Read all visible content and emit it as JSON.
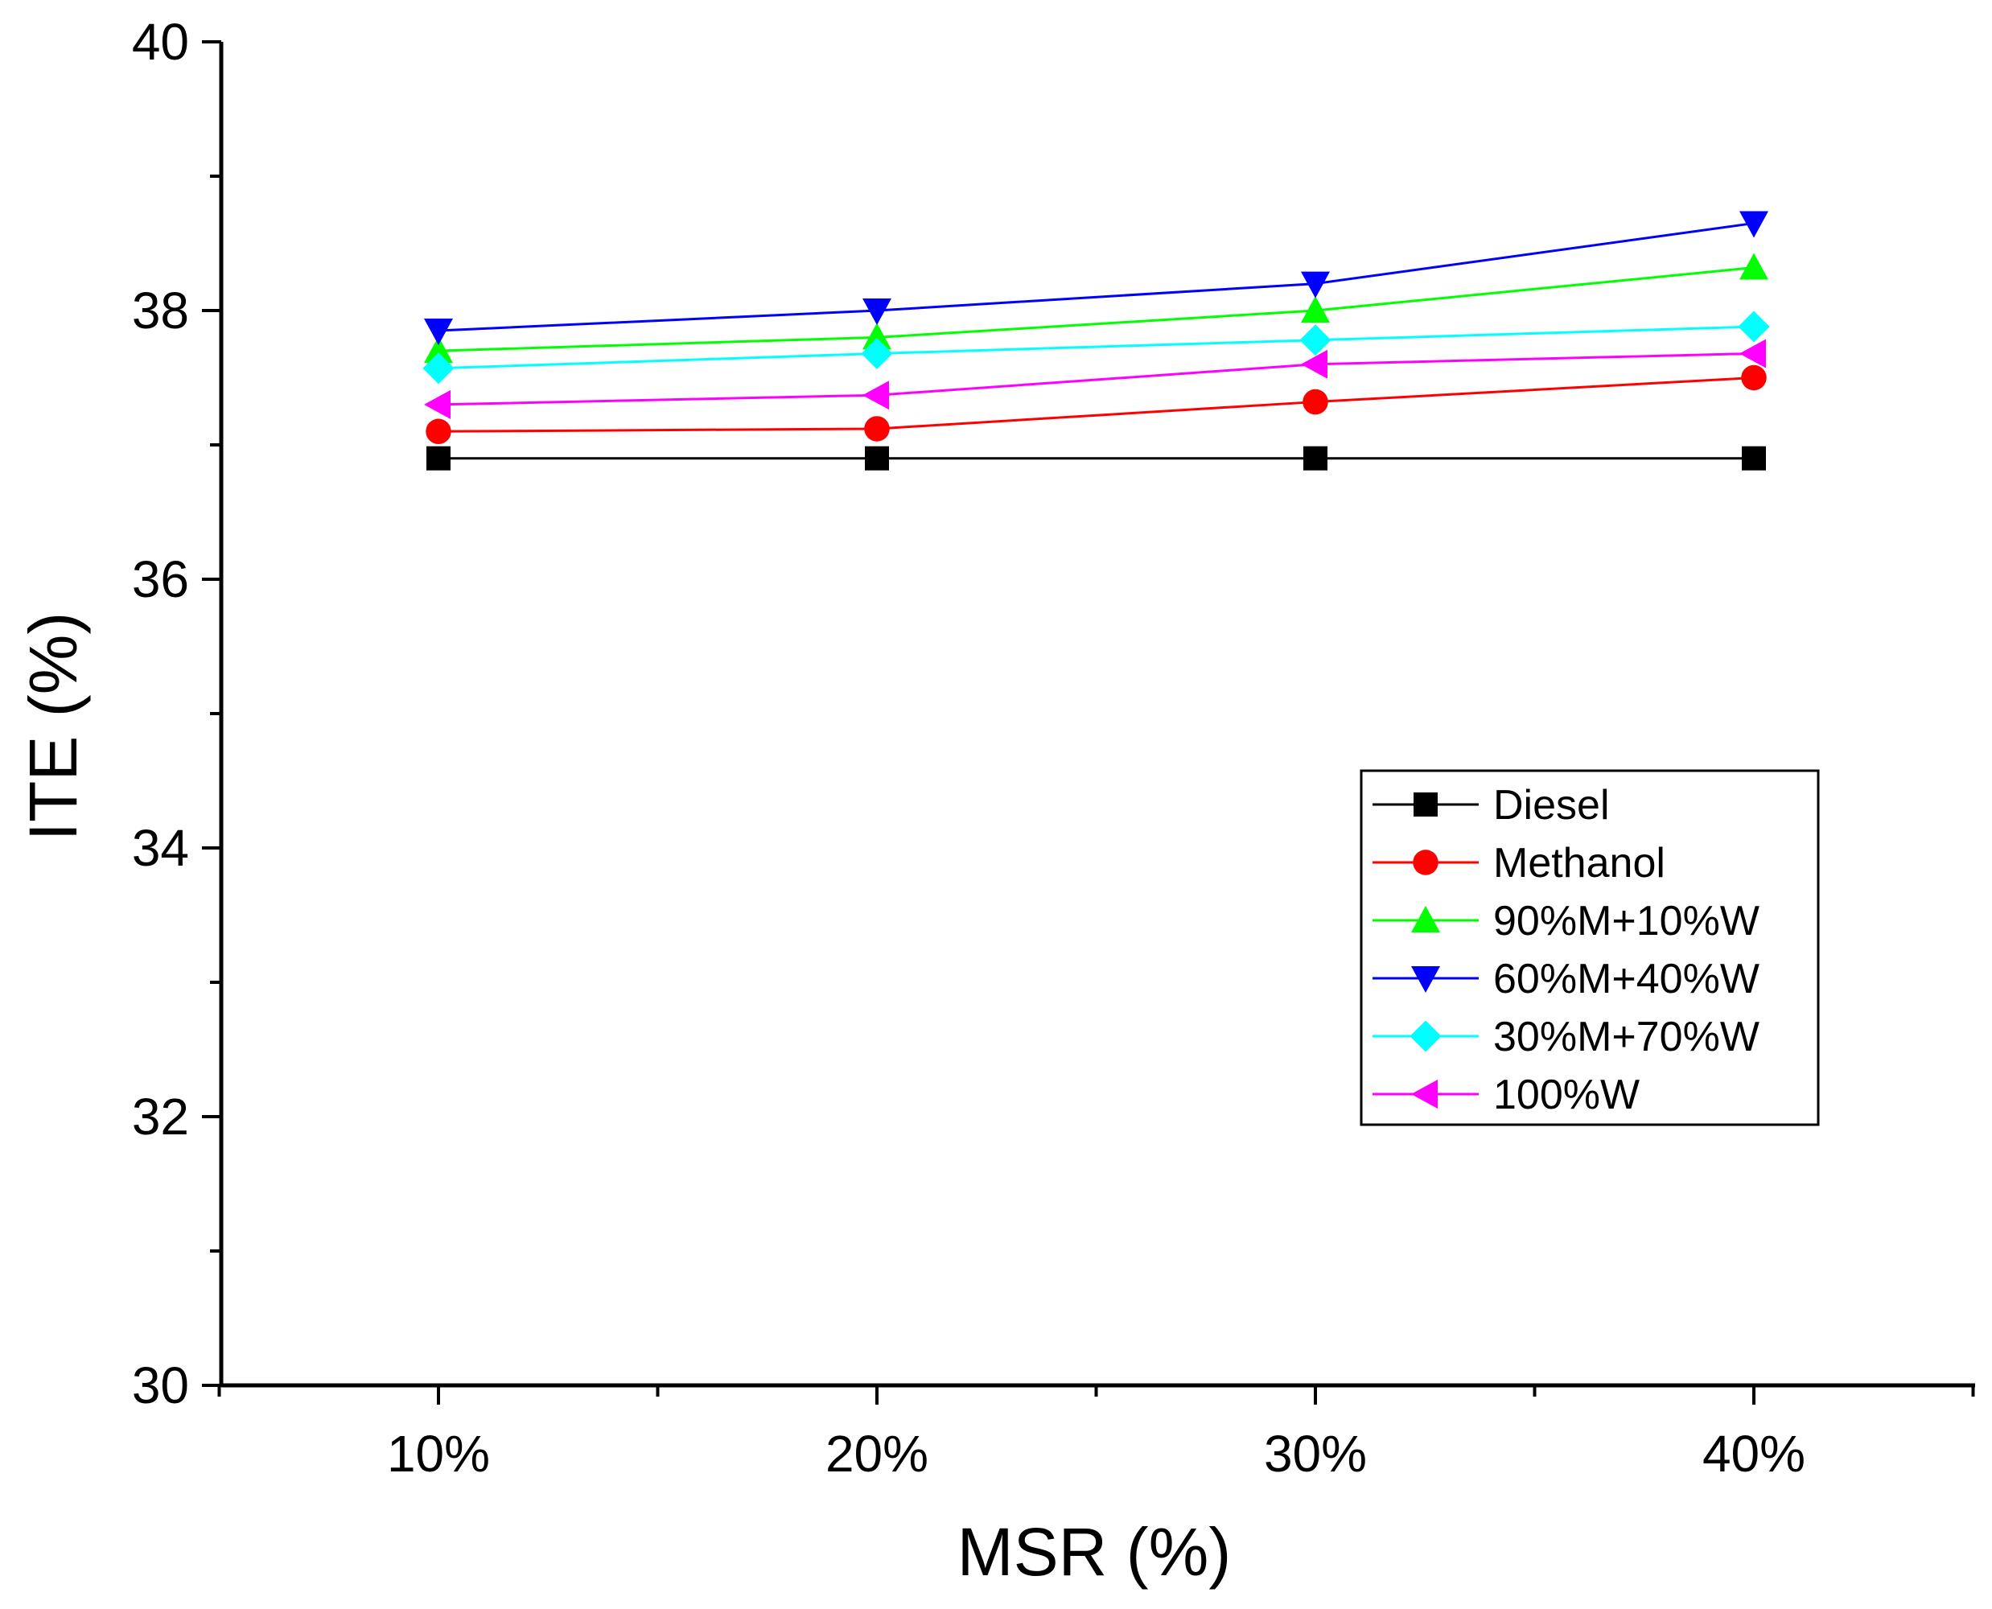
{
  "chart_data": {
    "type": "line",
    "title": "",
    "xlabel": "MSR (%)",
    "ylabel": "ITE (%)",
    "categories": [
      "10%",
      "20%",
      "30%",
      "40%"
    ],
    "ylim": [
      30,
      40
    ],
    "yticks": [
      "30",
      "32",
      "34",
      "36",
      "38",
      "40"
    ],
    "grid": false,
    "legend_position": "right",
    "series": [
      {
        "name": "Diesel",
        "color": "#000000",
        "marker": "square",
        "values": [
          36.9,
          36.9,
          36.9,
          36.9
        ]
      },
      {
        "name": "Methanol",
        "color": "#ff0000",
        "marker": "circle",
        "values": [
          37.1,
          37.12,
          37.32,
          37.5
        ]
      },
      {
        "name": "90%M+10%W",
        "color": "#00ff00",
        "marker": "triangle-up",
        "values": [
          37.7,
          37.8,
          38.0,
          38.32
        ]
      },
      {
        "name": "60%M+40%W",
        "color": "#0000ff",
        "marker": "triangle-down",
        "values": [
          37.85,
          38.0,
          38.2,
          38.65
        ]
      },
      {
        "name": "30%M+70%W",
        "color": "#00ffff",
        "marker": "diamond",
        "values": [
          37.57,
          37.68,
          37.78,
          37.88
        ]
      },
      {
        "name": "100%W",
        "color": "#ff00ff",
        "marker": "triangle-left",
        "values": [
          37.3,
          37.37,
          37.6,
          37.68
        ]
      }
    ]
  }
}
